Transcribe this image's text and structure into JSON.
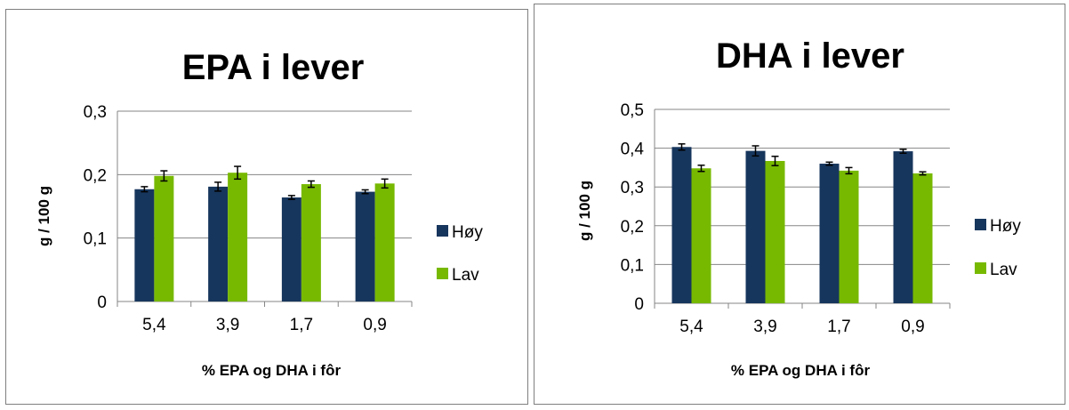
{
  "chart_data": [
    {
      "type": "bar",
      "title": "EPA i lever",
      "xlabel": "% EPA og DHA i fôr",
      "ylabel": "g / 100 g",
      "categories": [
        "5,4",
        "3,9",
        "1,7",
        "0,9"
      ],
      "yticks": [
        "0",
        "0,1",
        "0,2",
        "0,3"
      ],
      "ylim": [
        0,
        0.3
      ],
      "grid": true,
      "legend_position": "right",
      "series": [
        {
          "name": "Høy",
          "color": "#17365d",
          "values": [
            0.177,
            0.181,
            0.164,
            0.173
          ],
          "errors": [
            0.004,
            0.007,
            0.003,
            0.003
          ]
        },
        {
          "name": "Lav",
          "color": "#77b900",
          "values": [
            0.198,
            0.203,
            0.185,
            0.186
          ],
          "errors": [
            0.008,
            0.01,
            0.005,
            0.007
          ]
        }
      ]
    },
    {
      "type": "bar",
      "title": "DHA i lever",
      "xlabel": "% EPA og DHA i fôr",
      "ylabel": "g / 100 g",
      "categories": [
        "5,4",
        "3,9",
        "1,7",
        "0,9"
      ],
      "yticks": [
        "0",
        "0,1",
        "0,2",
        "0,3",
        "0,4",
        "0,5"
      ],
      "ylim": [
        0,
        0.5
      ],
      "grid": true,
      "legend_position": "right",
      "series": [
        {
          "name": "Høy",
          "color": "#17365d",
          "values": [
            0.403,
            0.393,
            0.36,
            0.392
          ],
          "errors": [
            0.008,
            0.013,
            0.004,
            0.005
          ]
        },
        {
          "name": "Lav",
          "color": "#77b900",
          "values": [
            0.348,
            0.367,
            0.342,
            0.335
          ],
          "errors": [
            0.008,
            0.012,
            0.008,
            0.004
          ]
        }
      ]
    }
  ]
}
